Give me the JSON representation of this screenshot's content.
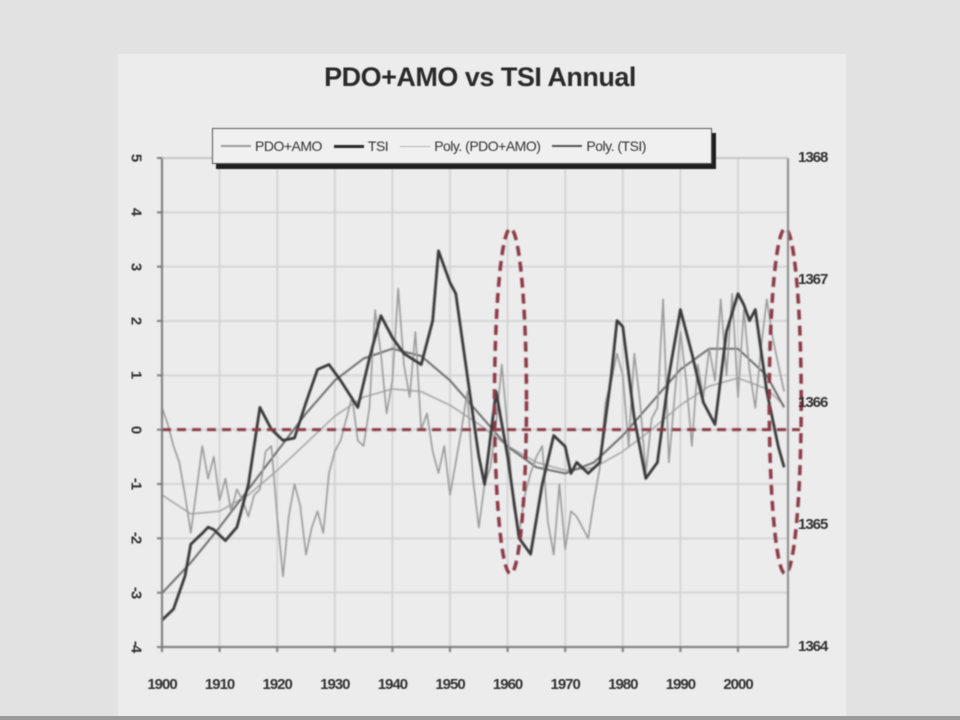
{
  "chart_data": {
    "type": "line",
    "title": "PDO+AMO vs TSI Annual",
    "xlabel": "",
    "ylabel_left": "",
    "ylabel_right": "",
    "x_range": [
      1900,
      2008.7
    ],
    "x_ticks": [
      1900,
      1910,
      1920,
      1930,
      1940,
      1950,
      1960,
      1970,
      1980,
      1990,
      2000
    ],
    "x_tick_labels": [
      "1900",
      "1910",
      "1920",
      "1930",
      "1940",
      "1950",
      "1960",
      "1970",
      "1980",
      "1990",
      "2000"
    ],
    "ylim_left": [
      -4,
      5
    ],
    "y_ticks_left": [
      5,
      4,
      3,
      2,
      1,
      0,
      -1,
      -2,
      -3,
      -4
    ],
    "y_tick_labels_left": [
      "5",
      "4",
      "3",
      "2",
      "1",
      "0",
      "-1",
      "-2",
      "-3",
      "-4"
    ],
    "ylim_right": [
      1364,
      1368
    ],
    "y_ticks_right": [
      1368,
      1367,
      1366,
      1365,
      1364
    ],
    "y_tick_labels_right": [
      "1368",
      "1367",
      "1366",
      "1365",
      "1364"
    ],
    "grid": true,
    "legend_position": "top",
    "legend": [
      "PDO+AMO",
      "TSI",
      "Poly. (PDO+AMO)",
      "Poly. (TSI)"
    ],
    "series": [
      {
        "name": "PDO+AMO",
        "axis": "left",
        "color": "#9a9a9a",
        "width": 1.6,
        "x": [
          1900,
          1901,
          1902,
          1903,
          1904,
          1905,
          1906,
          1907,
          1908,
          1909,
          1910,
          1911,
          1912,
          1913,
          1914,
          1915,
          1916,
          1917,
          1918,
          1919,
          1920,
          1921,
          1922,
          1923,
          1924,
          1925,
          1926,
          1927,
          1928,
          1929,
          1930,
          1931,
          1932,
          1933,
          1934,
          1935,
          1936,
          1937,
          1938,
          1939,
          1940,
          1941,
          1942,
          1943,
          1944,
          1945,
          1946,
          1947,
          1948,
          1949,
          1950,
          1951,
          1952,
          1953,
          1954,
          1955,
          1956,
          1957,
          1958,
          1959,
          1960,
          1961,
          1962,
          1963,
          1964,
          1965,
          1966,
          1967,
          1968,
          1969,
          1970,
          1971,
          1972,
          1973,
          1974,
          1975,
          1976,
          1977,
          1978,
          1979,
          1980,
          1981,
          1982,
          1983,
          1984,
          1985,
          1986,
          1987,
          1988,
          1989,
          1990,
          1991,
          1992,
          1993,
          1994,
          1995,
          1996,
          1997,
          1998,
          1999,
          2000,
          2001,
          2002,
          2003,
          2004,
          2005,
          2006,
          2007,
          2008
        ],
        "values": [
          0.4,
          0.1,
          -0.3,
          -0.6,
          -1.2,
          -1.9,
          -1.1,
          -0.3,
          -0.9,
          -0.5,
          -1.3,
          -0.9,
          -1.5,
          -1.1,
          -1.3,
          -1.6,
          -1.2,
          -1.1,
          -0.4,
          -0.3,
          -1.6,
          -2.7,
          -1.6,
          -1.0,
          -1.4,
          -2.3,
          -1.8,
          -1.5,
          -1.9,
          -0.8,
          -0.4,
          -0.2,
          0.2,
          0.6,
          -0.2,
          -0.3,
          0.4,
          2.2,
          1.4,
          0.3,
          0.9,
          2.6,
          1.2,
          0.6,
          1.8,
          0.0,
          0.3,
          -0.4,
          -0.8,
          -0.3,
          -1.2,
          -0.6,
          0.0,
          0.7,
          -0.9,
          -1.8,
          -1.0,
          -0.7,
          0.1,
          1.2,
          0.0,
          -1.4,
          -1.9,
          -1.2,
          -0.8,
          -0.5,
          -0.3,
          -1.7,
          -2.3,
          -1.0,
          -2.2,
          -1.5,
          -1.6,
          -1.8,
          -2.0,
          -1.3,
          -0.7,
          0.5,
          0.9,
          1.4,
          1.0,
          -0.3,
          1.4,
          0.5,
          -0.8,
          0.2,
          0.4,
          2.4,
          -0.6,
          0.6,
          1.8,
          0.9,
          -0.3,
          1.2,
          0.6,
          1.5,
          0.9,
          2.4,
          1.0,
          2.5,
          0.6,
          2.2,
          1.1,
          0.4,
          1.5,
          2.4,
          1.7,
          1.2,
          0.7
        ]
      },
      {
        "name": "TSI",
        "axis": "right",
        "color": "#3a3a3a",
        "width": 2.8,
        "x": [
          1900,
          1902,
          1904,
          1905,
          1907,
          1908,
          1909,
          1911,
          1913,
          1915,
          1917,
          1919,
          1921,
          1923,
          1925,
          1927,
          1929,
          1931,
          1934,
          1936,
          1938,
          1940,
          1942,
          1945,
          1947,
          1948,
          1950,
          1951,
          1953,
          1955,
          1956,
          1958,
          1960,
          1962,
          1964,
          1966,
          1968,
          1970,
          1971,
          1972,
          1974,
          1976,
          1978,
          1979,
          1980,
          1982,
          1984,
          1986,
          1988,
          1990,
          1992,
          1994,
          1996,
          1998,
          2000,
          2001,
          2002,
          2003,
          2005,
          2007,
          2008
        ],
        "values": [
          1364.22,
          1364.31,
          1364.58,
          1364.84,
          1364.93,
          1364.98,
          1364.96,
          1364.87,
          1364.98,
          1365.33,
          1365.96,
          1365.78,
          1365.69,
          1365.71,
          1366.0,
          1366.27,
          1366.31,
          1366.18,
          1365.96,
          1366.36,
          1366.71,
          1366.53,
          1366.4,
          1366.31,
          1366.67,
          1367.24,
          1366.98,
          1366.89,
          1366.22,
          1365.56,
          1365.33,
          1366.09,
          1365.56,
          1364.89,
          1364.76,
          1365.33,
          1365.73,
          1365.64,
          1365.42,
          1365.51,
          1365.42,
          1365.51,
          1366.22,
          1366.67,
          1366.62,
          1365.87,
          1365.38,
          1365.51,
          1366.22,
          1366.76,
          1366.4,
          1366.0,
          1365.82,
          1366.58,
          1366.89,
          1366.8,
          1366.67,
          1366.76,
          1366.09,
          1365.64,
          1365.47
        ]
      },
      {
        "name": "Poly. (PDO+AMO)",
        "axis": "left",
        "color": "#a8a8a8",
        "width": 1.6,
        "x": [
          1900,
          1905,
          1910,
          1915,
          1920,
          1925,
          1930,
          1935,
          1940,
          1945,
          1950,
          1955,
          1960,
          1965,
          1970,
          1975,
          1980,
          1985,
          1990,
          1995,
          2000,
          2005,
          2008
        ],
        "values": [
          -1.2,
          -1.55,
          -1.5,
          -1.2,
          -0.75,
          -0.25,
          0.25,
          0.6,
          0.75,
          0.7,
          0.45,
          0.1,
          -0.3,
          -0.6,
          -0.75,
          -0.7,
          -0.4,
          0.0,
          0.45,
          0.8,
          0.95,
          0.75,
          0.45
        ]
      },
      {
        "name": "Poly. (TSI)",
        "axis": "right",
        "color": "#6e6e6e",
        "width": 2.0,
        "x": [
          1900,
          1905,
          1910,
          1915,
          1920,
          1925,
          1930,
          1935,
          1940,
          1945,
          1950,
          1955,
          1960,
          1965,
          1970,
          1975,
          1980,
          1985,
          1990,
          1995,
          2000,
          2005,
          2008
        ],
        "values": [
          1364.44,
          1364.69,
          1364.98,
          1365.29,
          1365.6,
          1365.91,
          1366.18,
          1366.36,
          1366.44,
          1366.38,
          1366.18,
          1365.91,
          1365.64,
          1365.47,
          1365.42,
          1365.51,
          1365.73,
          1366.0,
          1366.27,
          1366.44,
          1366.44,
          1366.22,
          1365.96
        ]
      }
    ],
    "annotations": [
      {
        "type": "hline",
        "axis": "left",
        "y": 0,
        "style": "dashed",
        "color": "#8b3a46"
      },
      {
        "type": "ellipse",
        "style": "dashed",
        "color": "#8b3a46",
        "center_year": 1960.5,
        "y_top": 3.7,
        "y_bottom": -2.65
      },
      {
        "type": "ellipse",
        "style": "dashed",
        "color": "#8b3a46",
        "center_year": 2008.2,
        "y_top": 3.7,
        "y_bottom": -2.65
      }
    ]
  },
  "legend": {
    "items": [
      {
        "label": "PDO+AMO",
        "color": "#9a9a9a",
        "thickness": 2
      },
      {
        "label": "TSI",
        "color": "#2a2a2a",
        "thickness": 3
      },
      {
        "label": "Poly. (PDO+AMO)",
        "color": "#b4b4b4",
        "thickness": 1
      },
      {
        "label": "Poly. (TSI)",
        "color": "#555555",
        "thickness": 2
      }
    ]
  }
}
